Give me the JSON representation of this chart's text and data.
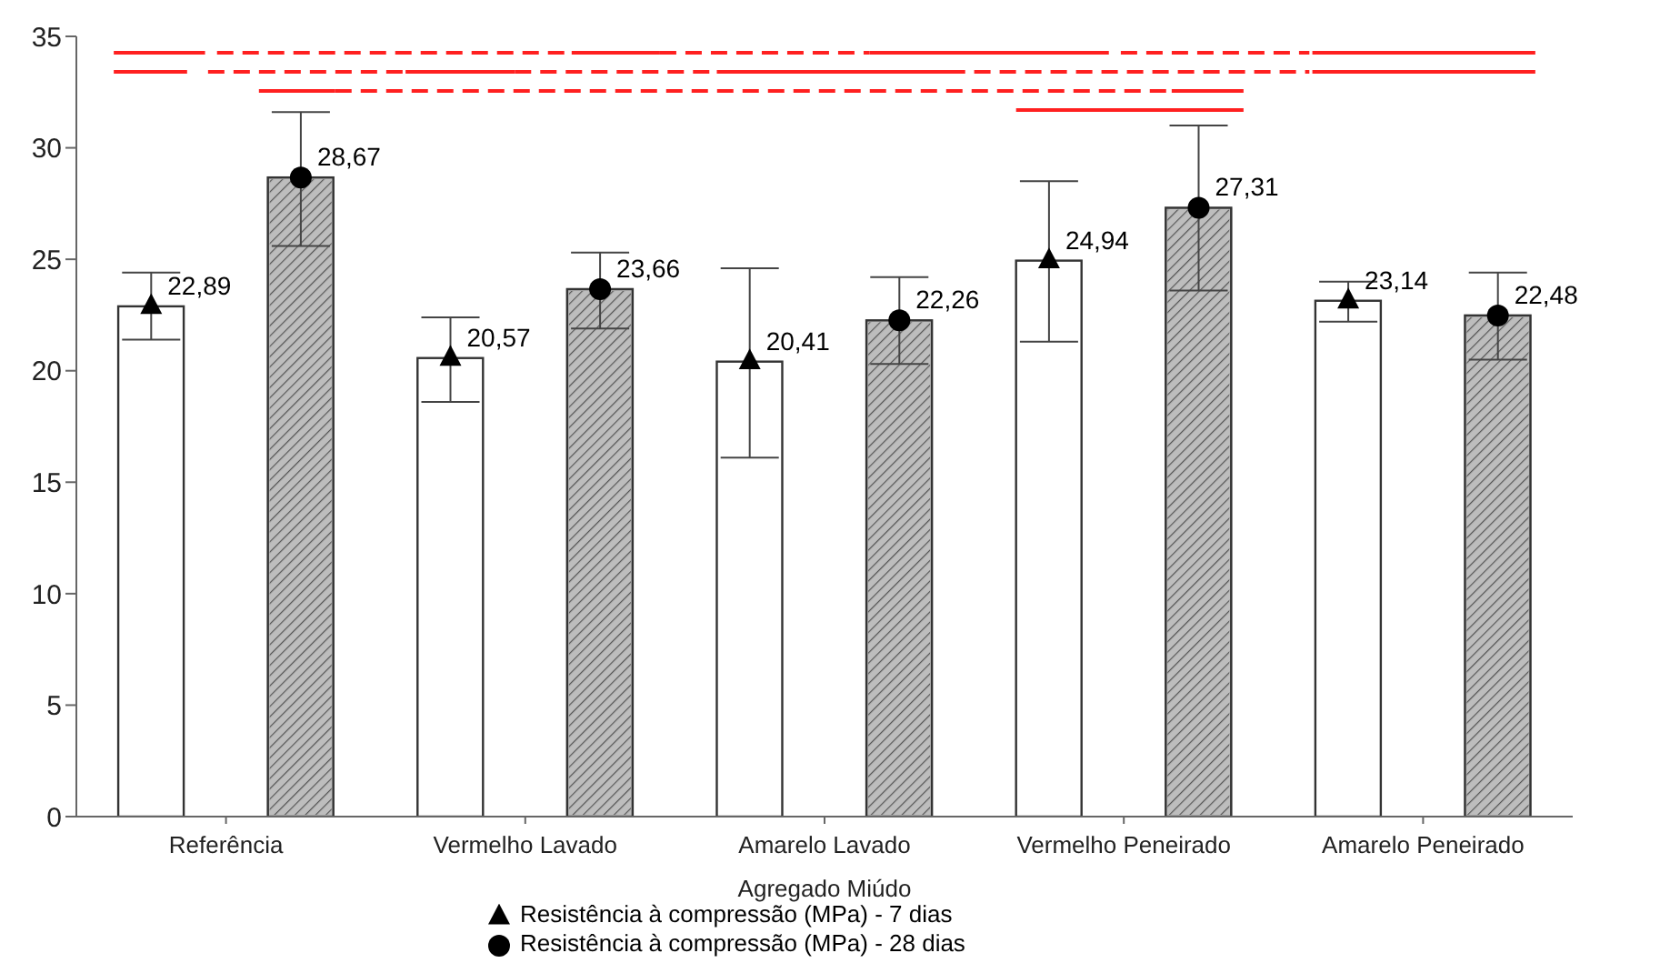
{
  "chart_data": {
    "type": "bar",
    "xlabel": "Agregado Miúdo",
    "categories": [
      "Referência",
      "Vermelho Lavado",
      "Amarelo Lavado",
      "Vermelho Peneirado",
      "Amarelo Peneirado"
    ],
    "series": [
      {
        "color": "#ffffff",
        "values": [
          22.89,
          20.57,
          20.41,
          24.94,
          23.14
        ]
      },
      {
        "color": "#bdbdbd",
        "values": [
          28.67,
          23.66,
          22.26,
          27.31,
          22.48
        ]
      },
      {
        "type": "scatter",
        "name": "Resistência à compressão (MPa) - 7 dias",
        "color": "#000000",
        "marker": "triangle",
        "x": [
          "Referência",
          "Vermelho Lavado",
          "Amarelo Lavado",
          "Vermelho Peneirado",
          "Amarelo Peneirado"
        ],
        "values": [
          22.89,
          20.57,
          20.41,
          24.94,
          23.14
        ],
        "errors": [
          [
            21.4,
            24.4
          ],
          [
            18.6,
            22.4
          ],
          [
            16.1,
            24.6
          ],
          [
            21.3,
            28.5
          ],
          [
            22.2,
            24.0
          ]
        ],
        "value_labels": [
          "22,89",
          "20,57",
          "20,41",
          "24,94",
          "23,14"
        ]
      },
      {
        "type": "scatter",
        "name": "Resistência à compressão (MPa) - 28 dias",
        "color": "#000000",
        "marker": "circle",
        "x": [
          "Referência",
          "Vermelho Lavado",
          "Amarelo Lavado",
          "Vermelho Peneirado",
          "Amarelo Peneirado"
        ],
        "values": [
          28.67,
          23.66,
          22.26,
          27.31,
          22.48
        ],
        "errors": [
          [
            25.6,
            31.6
          ],
          [
            21.9,
            25.3
          ],
          [
            20.3,
            24.2
          ],
          [
            23.6,
            31.0
          ],
          [
            20.5,
            24.4
          ]
        ],
        "value_labels": [
          "28,67",
          "23,66",
          "22,26",
          "27,31",
          "22,48"
        ]
      }
    ],
    "ylim": [
      0,
      35
    ],
    "yticks": [
      0,
      5,
      10,
      15,
      20,
      25,
      30,
      35
    ],
    "legend": "bottom"
  }
}
